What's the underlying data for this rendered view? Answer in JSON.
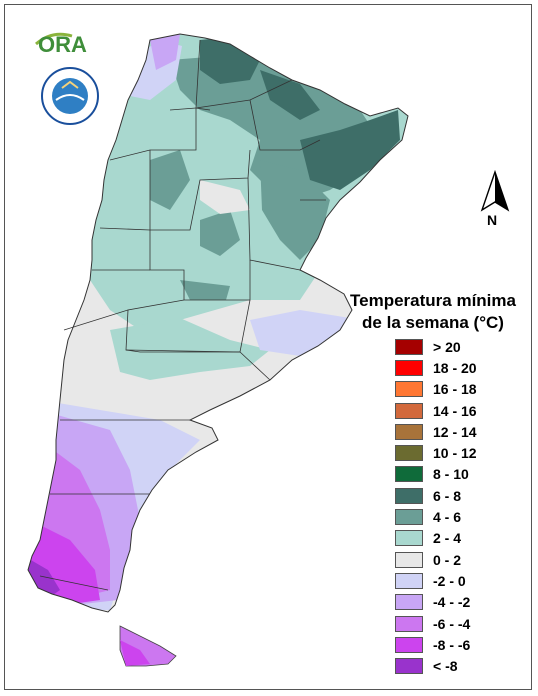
{
  "legend": {
    "title_line1": "Temperatura mínima",
    "title_line2": "de la semana (°C)",
    "items": [
      {
        "label": "> 20",
        "color": "#a50000"
      },
      {
        "label": "18 - 20",
        "color": "#ff0000"
      },
      {
        "label": "16 - 18",
        "color": "#ff7733"
      },
      {
        "label": "14 - 16",
        "color": "#d2693c"
      },
      {
        "label": "12 - 14",
        "color": "#a8733a"
      },
      {
        "label": "10 - 12",
        "color": "#6b6b30"
      },
      {
        "label": "8 - 10",
        "color": "#0f6b3a"
      },
      {
        "label": "6 - 8",
        "color": "#3e6e68"
      },
      {
        "label": "4 - 6",
        "color": "#6b9e96"
      },
      {
        "label": "2 - 4",
        "color": "#a9d8cf"
      },
      {
        "label": "0 - 2",
        "color": "#e8e8e8"
      },
      {
        "label": "-2 - 0",
        "color": "#d0d3f6"
      },
      {
        "label": "-4 - -2",
        "color": "#c8a6f5"
      },
      {
        "label": "-6 - -4",
        "color": "#cc77f0"
      },
      {
        "label": "-8 - -6",
        "color": "#cc44ee"
      },
      {
        "label": "< -8",
        "color": "#9933cc"
      }
    ]
  },
  "north_arrow": {
    "label": "N"
  },
  "logos": {
    "ora": "ORA",
    "seal_text": "SERVICIO METEOROLÓGICO NACIONAL ARGENTINA"
  }
}
